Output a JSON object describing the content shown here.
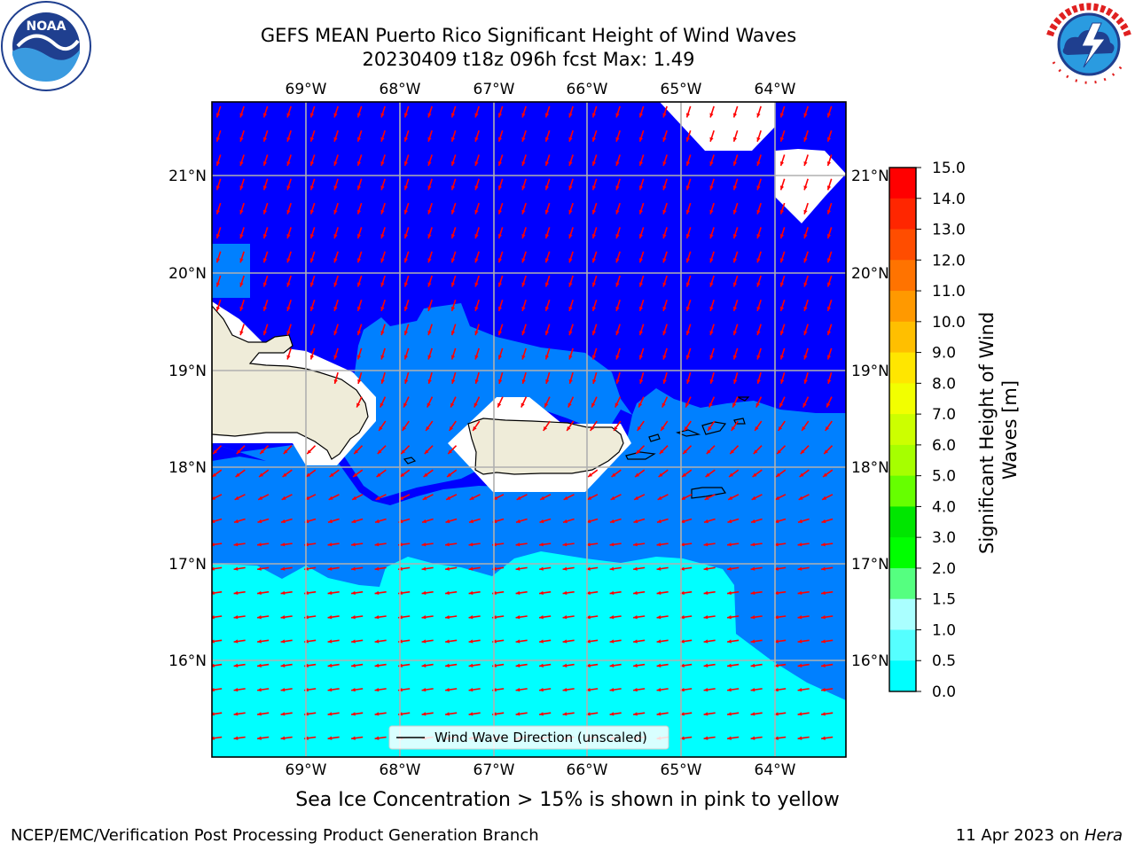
{
  "header": {
    "title_line1": "GEFS MEAN Puerto Rico Significant Height of Wind Waves",
    "title_line2": "20230409 t18z 096h fcst   Max: 1.49"
  },
  "logos": {
    "left": "noaa-logo",
    "left_text": "NOAA",
    "left_ring_text": "NATIONAL OCEANIC AND ATMOSPHERIC ADMINISTRATION · U.S. DEPARTMENT OF COMMERCE",
    "right": "nws-logo",
    "right_ring_text": "NATIONAL WEATHER SERVICE"
  },
  "map": {
    "lon_labels": [
      "69°W",
      "68°W",
      "67°W",
      "66°W",
      "65°W",
      "64°W"
    ],
    "lat_labels": [
      "21°N",
      "20°N",
      "19°N",
      "18°N",
      "17°N",
      "16°N"
    ],
    "legend_label": "Wind Wave Direction (unscaled)",
    "colors": {
      "band_0_0_5": "#0000ff",
      "band_0_5_1_0": "#0080ff",
      "band_1_0_1_5": "#00ffff",
      "land": "#efecd9",
      "no_data": "#ffffff",
      "arrows": "#ff0000"
    }
  },
  "colorbar": {
    "label": "Significant Height of Wind Waves [m]",
    "ticks": [
      "15.0",
      "14.0",
      "13.0",
      "12.0",
      "11.0",
      "10.0",
      "9.0",
      "8.0",
      "7.0",
      "6.0",
      "5.0",
      "4.0",
      "3.0",
      "2.0",
      "1.5",
      "1.0",
      "0.5",
      "0.0"
    ],
    "colors": [
      "#ff0000",
      "#ff2600",
      "#ff4d00",
      "#ff7300",
      "#ff9900",
      "#ffbf00",
      "#ffe600",
      "#f2ff00",
      "#ccff00",
      "#a6ff00",
      "#66ff00",
      "#00e600",
      "#00ff00",
      "#55ff80",
      "#aaffff",
      "#55ffff",
      "#00ffff",
      "#0080ff",
      "#0000ff"
    ]
  },
  "caption": "Sea Ice Concentration > 15% is shown in pink to yellow",
  "footer": {
    "left": "NCEP/EMC/Verification Post Processing Product Generation Branch",
    "right_date": "11 Apr 2023 on ",
    "right_host": "Hera"
  }
}
